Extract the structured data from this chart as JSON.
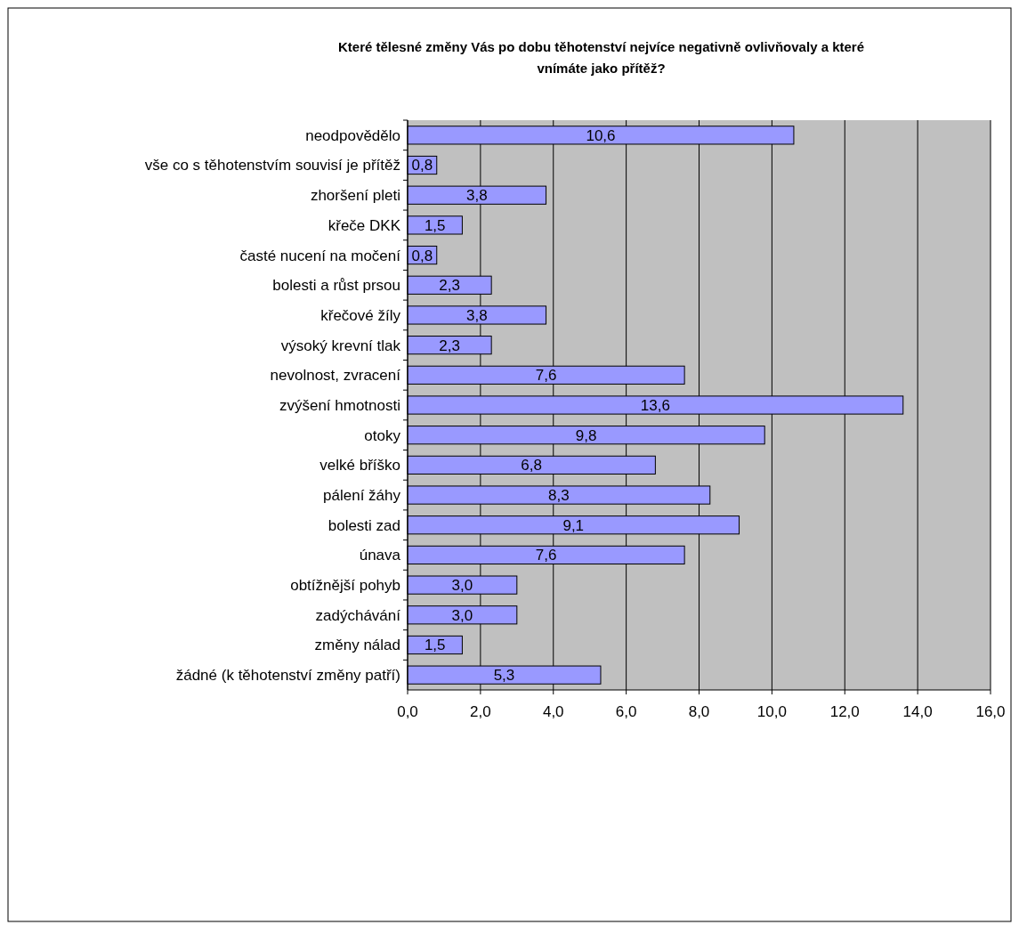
{
  "chart_data": {
    "type": "bar",
    "orientation": "horizontal",
    "title": "Které tělesné změny Vás po dobu těhotenství nejvíce negativně ovlivňovaly a které vnímáte jako přítěž?",
    "categories": [
      "neodpovědělo",
      "vše co s těhotenstvím souvisí je přítěž",
      "zhoršení pleti",
      "křeče DKK",
      "časté nucení na močení",
      "bolesti a růst prsou",
      "křečové žíly",
      "výsoký krevní tlak",
      "nevolnost, zvracení",
      "zvýšení hmotnosti",
      "otoky",
      "velké bříško",
      "pálení žáhy",
      "bolesti zad",
      "únava",
      "obtížnější pohyb",
      "zadýchávání",
      "změny nálad",
      "žádné (k těhotenství změny patří)"
    ],
    "values": [
      10.6,
      0.8,
      3.8,
      1.5,
      0.8,
      2.3,
      3.8,
      2.3,
      7.6,
      13.6,
      9.8,
      6.8,
      8.3,
      9.1,
      7.6,
      3.0,
      3.0,
      1.5,
      5.3
    ],
    "value_labels": [
      "10,6",
      "0,8",
      "3,8",
      "1,5",
      "0,8",
      "2,3",
      "3,8",
      "2,3",
      "7,6",
      "13,6",
      "9,8",
      "6,8",
      "8,3",
      "9,1",
      "7,6",
      "3,0",
      "3,0",
      "1,5",
      "5,3"
    ],
    "color": "#9999ff",
    "xlim": [
      0,
      16
    ],
    "xticks": [
      {
        "value": 0,
        "label": "0,0"
      },
      {
        "value": 2,
        "label": "2,0"
      },
      {
        "value": 4,
        "label": "4,0"
      },
      {
        "value": 6,
        "label": "6,0"
      },
      {
        "value": 8,
        "label": "8,0"
      },
      {
        "value": 10,
        "label": "10,0"
      },
      {
        "value": 12,
        "label": "12,0"
      },
      {
        "value": 14,
        "label": "14,0"
      },
      {
        "value": 16,
        "label": "16,0"
      }
    ],
    "grid": "x"
  }
}
